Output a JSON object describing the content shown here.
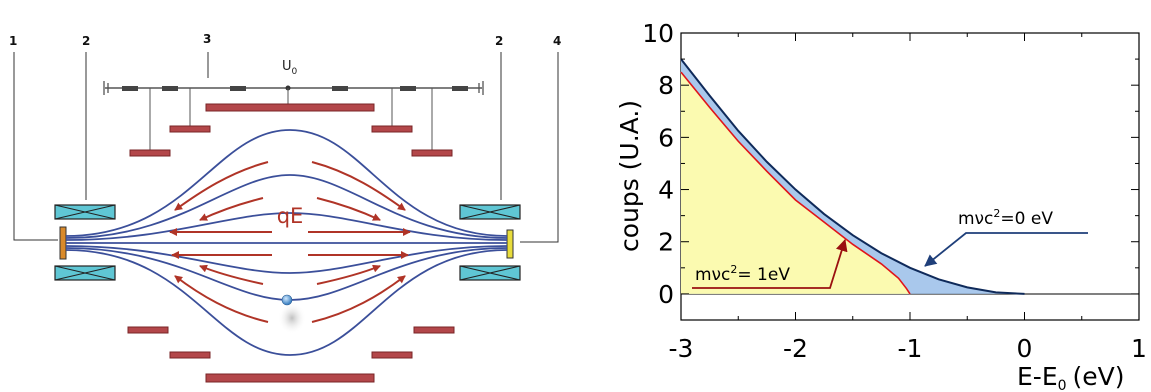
{
  "diagram": {
    "labels": {
      "l1": "1",
      "l2a": "2",
      "l3": "3",
      "l2b": "2",
      "l4": "4"
    },
    "voltage": "U",
    "voltage_sub": "0",
    "field": "qE"
  },
  "chart_data": {
    "type": "area",
    "xlim": [
      -3,
      1
    ],
    "ylim": [
      -1,
      10
    ],
    "x_ticks": [
      "-3",
      "-2",
      "-1",
      "0",
      "1"
    ],
    "y_ticks": [
      "0",
      "2",
      "4",
      "6",
      "8",
      "10"
    ],
    "xlabel_main": "E-E",
    "xlabel_sub": "0",
    "xlabel_unit": "(eV)",
    "ylabel": "coups (U.A.)",
    "colors": {
      "blue_fill": "#a9c8ec",
      "yellow_fill": "#fbfab0",
      "blue_line": "#0f2a5a",
      "red_line": "#e0141a"
    },
    "series": [
      {
        "name": "mνc²=0 eV",
        "x": [
          -3.0,
          -2.75,
          -2.5,
          -2.25,
          -2.0,
          -1.75,
          -1.5,
          -1.25,
          -1.0,
          -0.75,
          -0.5,
          -0.25,
          0.0
        ],
        "y": [
          9.0,
          7.6,
          6.25,
          5.06,
          4.0,
          3.06,
          2.25,
          1.56,
          1.0,
          0.56,
          0.25,
          0.06,
          0.0
        ]
      },
      {
        "name": "mνc²= 1eV",
        "x": [
          -3.0,
          -2.75,
          -2.5,
          -2.25,
          -2.0,
          -1.75,
          -1.5,
          -1.25,
          -1.1,
          -1.03,
          -1.0
        ],
        "y": [
          8.5,
          7.15,
          5.85,
          4.7,
          3.6,
          2.75,
          1.9,
          1.15,
          0.6,
          0.2,
          0.0
        ]
      }
    ],
    "annotations": [
      {
        "text_main": "mνc",
        "text_sup": "2",
        "text_rest": "=0 eV"
      },
      {
        "text_main": "mνc",
        "text_sup": "2",
        "text_rest": "= 1eV"
      }
    ]
  }
}
